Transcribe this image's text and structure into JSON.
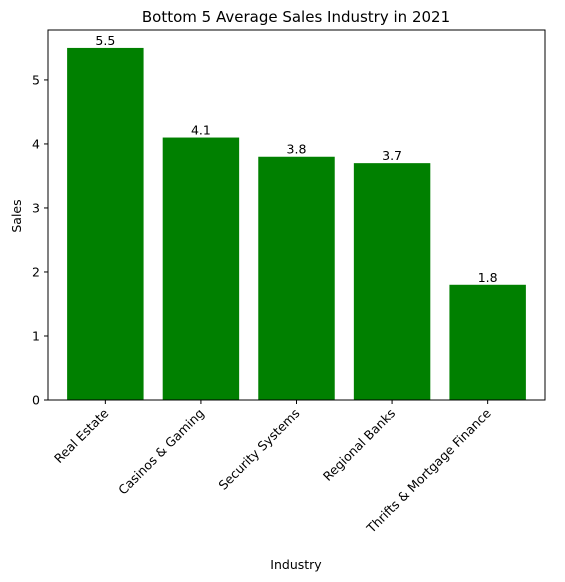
{
  "chart_data": {
    "type": "bar",
    "title": "Bottom 5 Average Sales Industry in 2021",
    "xlabel": "Industry",
    "ylabel": "Sales",
    "categories": [
      "Real Estate",
      "Casinos & Gaming",
      "Security Systems",
      "Regional Banks",
      "Thrifts & Mortgage Finance"
    ],
    "values": [
      5.5,
      4.1,
      3.8,
      3.7,
      1.8
    ],
    "data_labels": [
      "5.5",
      "4.1",
      "3.8",
      "3.7",
      "1.8"
    ],
    "ylim": [
      0,
      5.78
    ],
    "yticks": [
      0,
      1,
      2,
      3,
      4,
      5
    ],
    "bar_color": "#008000",
    "grid": false,
    "legend": "none"
  }
}
